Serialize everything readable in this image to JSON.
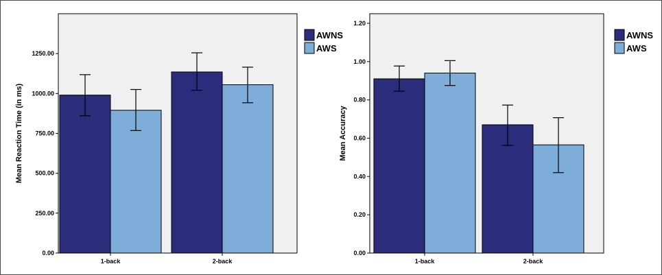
{
  "chart_data": [
    {
      "type": "bar",
      "categories": [
        "1-back",
        "2-back"
      ],
      "ylabel": "Mean Reaction Time (in ms)",
      "xlabel": "",
      "ylim": [
        0,
        1500
      ],
      "yticks": [
        0,
        250,
        500,
        750,
        1000,
        1250
      ],
      "ytick_labels": [
        "0.00",
        "250.00",
        "500.00",
        "750.00",
        "1000.00",
        "1250.00"
      ],
      "legend_position": "top-right, outside plot",
      "series": [
        {
          "name": "AWNS",
          "color": "#2b2d7c",
          "values": [
            990,
            1135
          ],
          "err_low": [
            860,
            1020
          ],
          "err_high": [
            1118,
            1255
          ]
        },
        {
          "name": "AWS",
          "color": "#7fadd9",
          "values": [
            895,
            1055
          ],
          "err_low": [
            768,
            942
          ],
          "err_high": [
            1025,
            1165
          ]
        }
      ]
    },
    {
      "type": "bar",
      "categories": [
        "1-back",
        "2-back"
      ],
      "ylabel": "Mean Accuracy",
      "xlabel": "",
      "ylim": [
        0,
        1.25
      ],
      "yticks": [
        0,
        0.2,
        0.4,
        0.6,
        0.8,
        1.0,
        1.2
      ],
      "ytick_labels": [
        "0.00",
        "0.20",
        "0.40",
        "0.60",
        "0.80",
        "1.00",
        "1.20"
      ],
      "legend_position": "top-right, outside plot",
      "series": [
        {
          "name": "AWNS",
          "color": "#2b2d7c",
          "values": [
            0.91,
            0.67
          ],
          "err_low": [
            0.845,
            0.562
          ],
          "err_high": [
            0.977,
            0.773
          ]
        },
        {
          "name": "AWS",
          "color": "#7fadd9",
          "values": [
            0.94,
            0.565
          ],
          "err_low": [
            0.875,
            0.42
          ],
          "err_high": [
            1.005,
            0.707
          ]
        }
      ]
    }
  ]
}
